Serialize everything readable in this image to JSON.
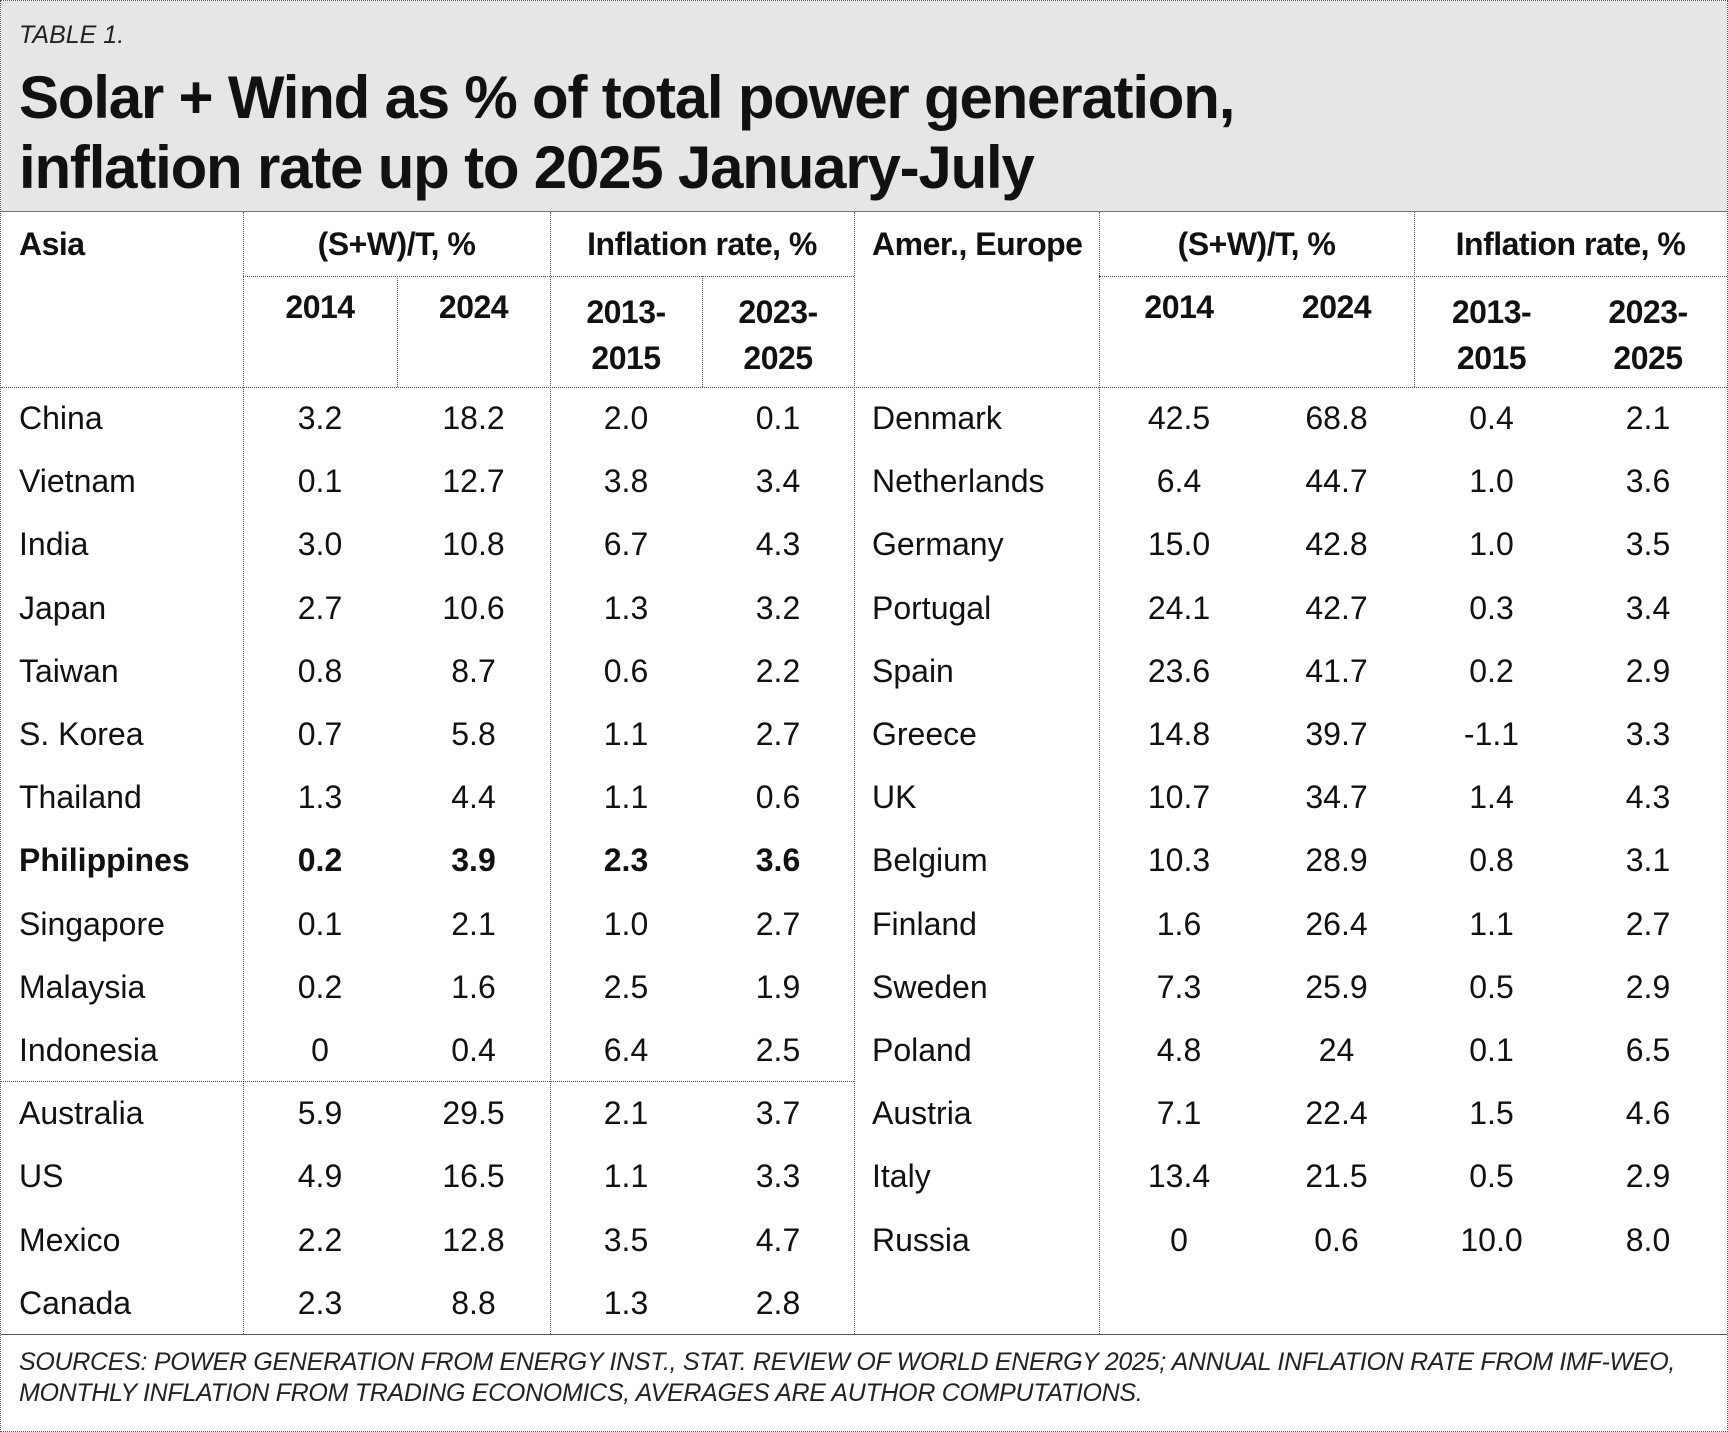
{
  "label": "TABLE 1.",
  "title_line1": "Solar + Wind as % of total power generation,",
  "title_line2": "inflation rate up to 2025 January-July",
  "headers": {
    "left_region": "Asia",
    "right_region": "Amer., Europe",
    "sw_group": "(S+W)/T, %",
    "inflation_group": "Inflation rate, %",
    "year_2014": "2014",
    "year_2024": "2024",
    "range1_a": "2013-",
    "range1_b": "2015",
    "range2_a": "2023-",
    "range2_b": "2025"
  },
  "left_rows": [
    {
      "country": "China",
      "sw2014": "3.2",
      "sw2024": "18.2",
      "inf1315": "2.0",
      "inf2325": "0.1"
    },
    {
      "country": "Vietnam",
      "sw2014": "0.1",
      "sw2024": "12.7",
      "inf1315": "3.8",
      "inf2325": "3.4"
    },
    {
      "country": "India",
      "sw2014": "3.0",
      "sw2024": "10.8",
      "inf1315": "6.7",
      "inf2325": "4.3"
    },
    {
      "country": "Japan",
      "sw2014": "2.7",
      "sw2024": "10.6",
      "inf1315": "1.3",
      "inf2325": "3.2"
    },
    {
      "country": "Taiwan",
      "sw2014": "0.8",
      "sw2024": "8.7",
      "inf1315": "0.6",
      "inf2325": "2.2"
    },
    {
      "country": "S. Korea",
      "sw2014": "0.7",
      "sw2024": "5.8",
      "inf1315": "1.1",
      "inf2325": "2.7"
    },
    {
      "country": "Thailand",
      "sw2014": "1.3",
      "sw2024": "4.4",
      "inf1315": "1.1",
      "inf2325": "0.6"
    },
    {
      "country": "Philippines",
      "sw2014": "0.2",
      "sw2024": "3.9",
      "inf1315": "2.3",
      "inf2325": "3.6",
      "bold": true
    },
    {
      "country": "Singapore",
      "sw2014": "0.1",
      "sw2024": "2.1",
      "inf1315": "1.0",
      "inf2325": "2.7"
    },
    {
      "country": "Malaysia",
      "sw2014": "0.2",
      "sw2024": "1.6",
      "inf1315": "2.5",
      "inf2325": "1.9"
    },
    {
      "country": "Indonesia",
      "sw2014": "0",
      "sw2024": "0.4",
      "inf1315": "6.4",
      "inf2325": "2.5"
    },
    {
      "country": "Australia",
      "sw2014": "5.9",
      "sw2024": "29.5",
      "inf1315": "2.1",
      "inf2325": "3.7"
    },
    {
      "country": "US",
      "sw2014": "4.9",
      "sw2024": "16.5",
      "inf1315": "1.1",
      "inf2325": "3.3"
    },
    {
      "country": "Mexico",
      "sw2014": "2.2",
      "sw2024": "12.8",
      "inf1315": "3.5",
      "inf2325": "4.7"
    },
    {
      "country": "Canada",
      "sw2014": "2.3",
      "sw2024": "8.8",
      "inf1315": "1.3",
      "inf2325": "2.8"
    }
  ],
  "right_rows": [
    {
      "country": "Denmark",
      "sw2014": "42.5",
      "sw2024": "68.8",
      "inf1315": "0.4",
      "inf2325": "2.1"
    },
    {
      "country": "Netherlands",
      "sw2014": "6.4",
      "sw2024": "44.7",
      "inf1315": "1.0",
      "inf2325": "3.6"
    },
    {
      "country": "Germany",
      "sw2014": "15.0",
      "sw2024": "42.8",
      "inf1315": "1.0",
      "inf2325": "3.5"
    },
    {
      "country": "Portugal",
      "sw2014": "24.1",
      "sw2024": "42.7",
      "inf1315": "0.3",
      "inf2325": "3.4"
    },
    {
      "country": "Spain",
      "sw2014": "23.6",
      "sw2024": "41.7",
      "inf1315": "0.2",
      "inf2325": "2.9"
    },
    {
      "country": "Greece",
      "sw2014": "14.8",
      "sw2024": "39.7",
      "inf1315": "-1.1",
      "inf2325": "3.3"
    },
    {
      "country": "UK",
      "sw2014": "10.7",
      "sw2024": "34.7",
      "inf1315": "1.4",
      "inf2325": "4.3"
    },
    {
      "country": "Belgium",
      "sw2014": "10.3",
      "sw2024": "28.9",
      "inf1315": "0.8",
      "inf2325": "3.1"
    },
    {
      "country": "Finland",
      "sw2014": "1.6",
      "sw2024": "26.4",
      "inf1315": "1.1",
      "inf2325": "2.7"
    },
    {
      "country": "Sweden",
      "sw2014": "7.3",
      "sw2024": "25.9",
      "inf1315": "0.5",
      "inf2325": "2.9"
    },
    {
      "country": "Poland",
      "sw2014": "4.8",
      "sw2024": "24",
      "inf1315": "0.1",
      "inf2325": "6.5"
    },
    {
      "country": "Austria",
      "sw2014": "7.1",
      "sw2024": "22.4",
      "inf1315": "1.5",
      "inf2325": "4.6"
    },
    {
      "country": "Italy",
      "sw2014": "13.4",
      "sw2024": "21.5",
      "inf1315": "0.5",
      "inf2325": "2.9"
    },
    {
      "country": "Russia",
      "sw2014": "0",
      "sw2024": "0.6",
      "inf1315": "10.0",
      "inf2325": "8.0"
    }
  ],
  "notes": "SOURCES: POWER GENERATION FROM ENERGY INST., STAT. REVIEW OF WORLD ENERGY 2025; ANNUAL INFLATION RATE FROM IMF-WEO, MONTHLY INFLATION FROM TRADING ECONOMICS, AVERAGES ARE AUTHOR COMPUTATIONS."
}
